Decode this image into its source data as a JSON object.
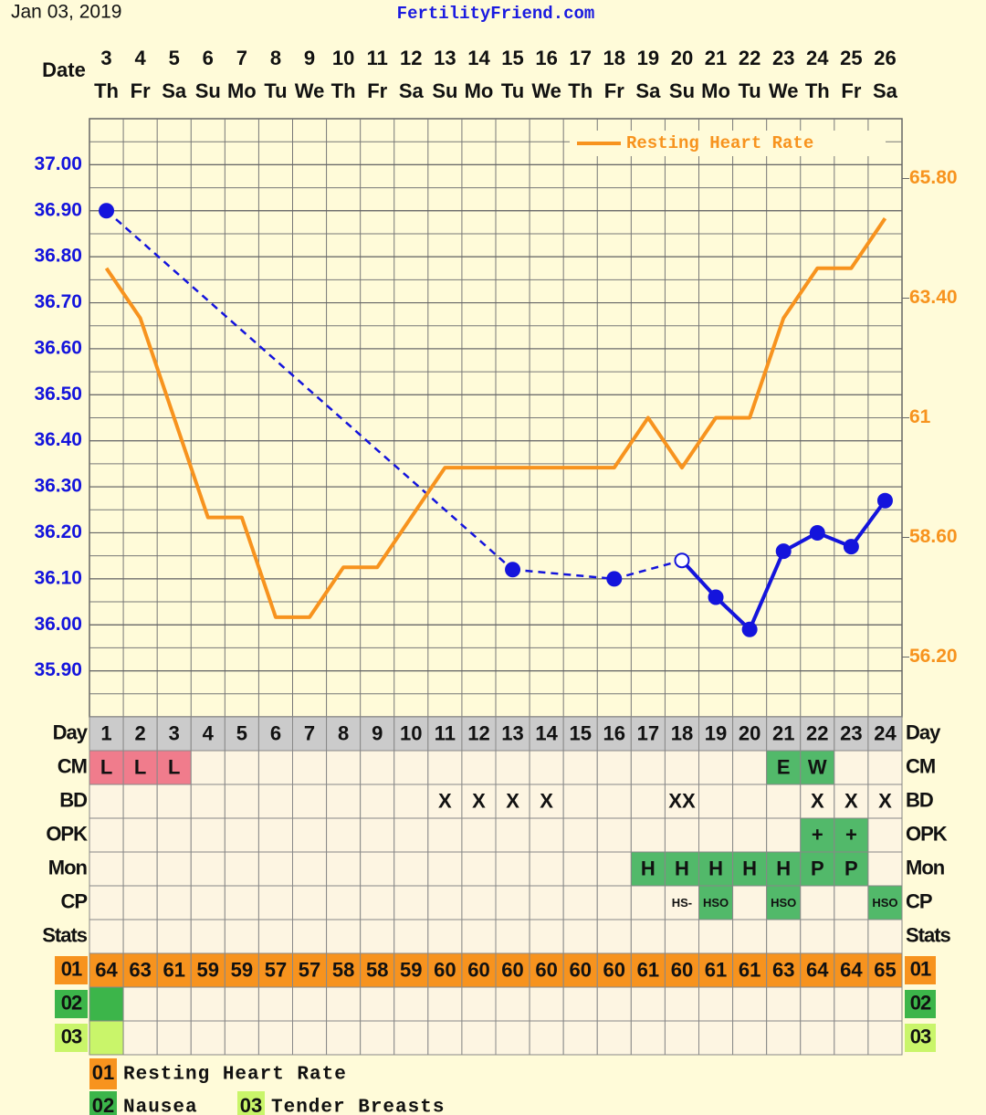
{
  "chart_data": {
    "type": "line",
    "date": "Jan 03, 2019",
    "site": "FertilityFriend.com",
    "date_label": "Date",
    "dates": [
      3,
      4,
      5,
      6,
      7,
      8,
      9,
      10,
      11,
      12,
      13,
      14,
      15,
      16,
      17,
      18,
      19,
      20,
      21,
      22,
      23,
      24,
      25,
      26
    ],
    "weekdays": [
      "Th",
      "Fr",
      "Sa",
      "Su",
      "Mo",
      "Tu",
      "We",
      "Th",
      "Fr",
      "Sa",
      "Su",
      "Mo",
      "Tu",
      "We",
      "Th",
      "Fr",
      "Sa",
      "Su",
      "Mo",
      "Tu",
      "We",
      "Th",
      "Fr",
      "Sa"
    ],
    "cycle_day_label": "Day",
    "cycle_days": [
      1,
      2,
      3,
      4,
      5,
      6,
      7,
      8,
      9,
      10,
      11,
      12,
      13,
      14,
      15,
      16,
      17,
      18,
      19,
      20,
      21,
      22,
      23,
      24
    ],
    "ylim": [
      35.8,
      37.1
    ],
    "yticks": [
      {
        "value": 35.9,
        "label": "35.90"
      },
      {
        "value": 36.0,
        "label": "36.00"
      },
      {
        "value": 36.1,
        "label": "36.10"
      },
      {
        "value": 36.2,
        "label": "36.20"
      },
      {
        "value": 36.3,
        "label": "36.30"
      },
      {
        "value": 36.4,
        "label": "36.40"
      },
      {
        "value": 36.5,
        "label": "36.50"
      },
      {
        "value": 36.6,
        "label": "36.60"
      },
      {
        "value": 36.7,
        "label": "36.70"
      },
      {
        "value": 36.8,
        "label": "36.80"
      },
      {
        "value": 36.9,
        "label": "36.90"
      },
      {
        "value": 37.0,
        "label": "37.00"
      }
    ],
    "y2lim": [
      55,
      67
    ],
    "y2ticks": [
      {
        "value": 56.2,
        "label": "56.20"
      },
      {
        "value": 58.6,
        "label": "58.60"
      },
      61,
      {
        "value": 63.4,
        "label": "63.40"
      },
      {
        "value": 65.8,
        "label": "65.80"
      }
    ],
    "grid": true,
    "legend": "top-right",
    "series": [
      {
        "color": "#1414dc",
        "values": [
          36.9,
          null,
          null,
          null,
          null,
          null,
          null,
          null,
          null,
          null,
          null,
          null,
          36.12,
          null,
          null,
          36.1,
          null,
          36.14,
          36.06,
          35.99,
          36.16,
          36.2,
          36.17,
          36.27
        ],
        "hollow": [
          17
        ]
      },
      {
        "name": "Resting Heart Rate",
        "color": "#f7931e",
        "axis": "y2",
        "values": [
          64,
          63,
          61,
          59,
          59,
          57,
          57,
          58,
          58,
          59,
          60,
          60,
          60,
          60,
          60,
          60,
          61,
          60,
          61,
          61,
          63,
          64,
          64,
          65
        ]
      }
    ],
    "rows": [
      {
        "label": "CM",
        "cells": [
          "L",
          "L",
          "L",
          null,
          null,
          null,
          null,
          null,
          null,
          null,
          null,
          null,
          null,
          null,
          null,
          null,
          null,
          null,
          null,
          null,
          "E",
          "W",
          null,
          null
        ],
        "colors": [
          "#f07c8c",
          "#f07c8c",
          "#f07c8c",
          null,
          null,
          null,
          null,
          null,
          null,
          null,
          null,
          null,
          null,
          null,
          null,
          null,
          null,
          null,
          null,
          null,
          "#52b96a",
          "#52b96a",
          null,
          null
        ]
      },
      {
        "label": "BD",
        "cells": [
          null,
          null,
          null,
          null,
          null,
          null,
          null,
          null,
          null,
          null,
          "X",
          "X",
          "X",
          "X",
          null,
          null,
          null,
          "XX",
          null,
          null,
          null,
          "X",
          "X",
          "X"
        ]
      },
      {
        "label": "OPK",
        "cells": [
          null,
          null,
          null,
          null,
          null,
          null,
          null,
          null,
          null,
          null,
          null,
          null,
          null,
          null,
          null,
          null,
          null,
          null,
          null,
          null,
          null,
          "+",
          "+",
          null
        ],
        "colors": [
          null,
          null,
          null,
          null,
          null,
          null,
          null,
          null,
          null,
          null,
          null,
          null,
          null,
          null,
          null,
          null,
          null,
          null,
          null,
          null,
          null,
          "#52b96a",
          "#52b96a",
          null
        ]
      },
      {
        "label": "Mon",
        "cells": [
          null,
          null,
          null,
          null,
          null,
          null,
          null,
          null,
          null,
          null,
          null,
          null,
          null,
          null,
          null,
          null,
          "H",
          "H",
          "H",
          "H",
          "H",
          "P",
          "P",
          null
        ],
        "colors": [
          null,
          null,
          null,
          null,
          null,
          null,
          null,
          null,
          null,
          null,
          null,
          null,
          null,
          null,
          null,
          null,
          "#52b96a",
          "#52b96a",
          "#52b96a",
          "#52b96a",
          "#52b96a",
          "#52b96a",
          "#52b96a",
          null
        ]
      },
      {
        "label": "CP",
        "cells": [
          null,
          null,
          null,
          null,
          null,
          null,
          null,
          null,
          null,
          null,
          null,
          null,
          null,
          null,
          null,
          null,
          null,
          "HS-",
          "HSO",
          null,
          "HSO",
          null,
          null,
          "HSO"
        ],
        "colors": [
          null,
          null,
          null,
          null,
          null,
          null,
          null,
          null,
          null,
          null,
          null,
          null,
          null,
          null,
          null,
          null,
          null,
          null,
          "#52b96a",
          null,
          "#52b96a",
          null,
          null,
          "#52b96a"
        ]
      },
      {
        "label": "Stats",
        "cells": [
          null,
          null,
          null,
          null,
          null,
          null,
          null,
          null,
          null,
          null,
          null,
          null,
          null,
          null,
          null,
          null,
          null,
          null,
          null,
          null,
          null,
          null,
          null,
          null
        ]
      }
    ],
    "key": [
      {
        "code": "01",
        "name": "Resting Heart Rate",
        "color": "#f7931e"
      },
      {
        "code": "02",
        "name": "Nausea",
        "color": "#3cb54a",
        "fills": [
          "#3cb54a",
          null,
          null,
          null,
          null,
          null,
          null,
          null,
          null,
          null,
          null,
          null,
          null,
          null,
          null,
          null,
          null,
          null,
          null,
          null,
          null,
          null,
          null,
          null
        ]
      },
      {
        "code": "03",
        "name": "Tender Breasts",
        "color": "#c9f56a",
        "fills": [
          "#c9f56a",
          null,
          null,
          null,
          null,
          null,
          null,
          null,
          null,
          null,
          null,
          null,
          null,
          null,
          null,
          null,
          null,
          null,
          null,
          null,
          null,
          null,
          null,
          null
        ]
      }
    ]
  }
}
